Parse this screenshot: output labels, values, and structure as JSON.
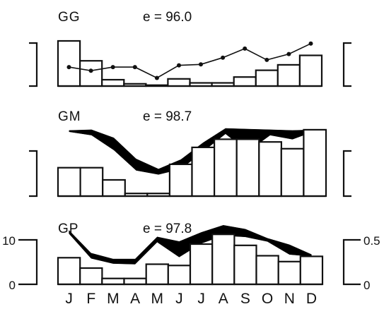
{
  "months": [
    "J",
    "F",
    "M",
    "A",
    "M",
    "J",
    "J",
    "A",
    "S",
    "O",
    "N",
    "D"
  ],
  "chart_data": [
    {
      "type": "bar",
      "name": "GG",
      "label": "GG",
      "efficiency_text": "e = 96.0",
      "categories": [
        "J",
        "F",
        "M",
        "A",
        "M",
        "J",
        "J",
        "A",
        "S",
        "O",
        "N",
        "D"
      ],
      "bars": [
        1.0,
        0.56,
        0.14,
        0.05,
        0.02,
        0.16,
        0.07,
        0.07,
        0.2,
        0.35,
        0.47,
        0.68
      ],
      "line": [
        0.42,
        0.34,
        0.42,
        0.42,
        0.18,
        0.46,
        0.48,
        0.63,
        0.83,
        0.58,
        0.71,
        0.94
      ],
      "left_ticks": [],
      "right_ticks": []
    },
    {
      "type": "bar",
      "name": "GM",
      "label": "GM",
      "efficiency_text": "e = 98.7",
      "categories": [
        "J",
        "F",
        "M",
        "A",
        "M",
        "J",
        "J",
        "A",
        "S",
        "O",
        "N",
        "D"
      ],
      "bars": [
        0.42,
        0.42,
        0.24,
        0.04,
        0.04,
        0.47,
        0.72,
        0.84,
        0.84,
        0.8,
        0.7,
        0.98
      ],
      "band_upper": [
        0.97,
        0.98,
        0.86,
        0.55,
        0.4,
        0.54,
        0.79,
        1.0,
        0.99,
        0.98,
        0.97,
        0.98
      ],
      "band_lower": [
        0.95,
        0.9,
        0.68,
        0.38,
        0.32,
        0.4,
        0.66,
        0.92,
        0.66,
        0.9,
        0.84,
        0.96
      ],
      "left_ticks": [],
      "right_ticks": []
    },
    {
      "type": "bar",
      "name": "GP",
      "label": "GP",
      "efficiency_text": "e = 97.8",
      "categories": [
        "J",
        "F",
        "M",
        "A",
        "M",
        "J",
        "J",
        "A",
        "S",
        "O",
        "N",
        "D"
      ],
      "ylim_left": [
        0,
        10
      ],
      "ylim_right": [
        0,
        0.5
      ],
      "bars": [
        4.1,
        2.5,
        0.9,
        0.9,
        3.1,
        2.9,
        6.2,
        7.7,
        6.0,
        4.4,
        3.5,
        4.3
      ],
      "band_upper": [
        8.3,
        4.8,
        3.9,
        3.9,
        7.3,
        6.6,
        8.0,
        9.1,
        8.5,
        7.1,
        6.1,
        4.6
      ],
      "band_lower": [
        7.8,
        4.0,
        3.2,
        3.1,
        6.5,
        4.2,
        6.3,
        7.5,
        7.3,
        6.6,
        4.6,
        4.3
      ],
      "left_ticks": [
        "10",
        "0"
      ],
      "right_ticks": [
        "0.5",
        "0"
      ]
    }
  ]
}
